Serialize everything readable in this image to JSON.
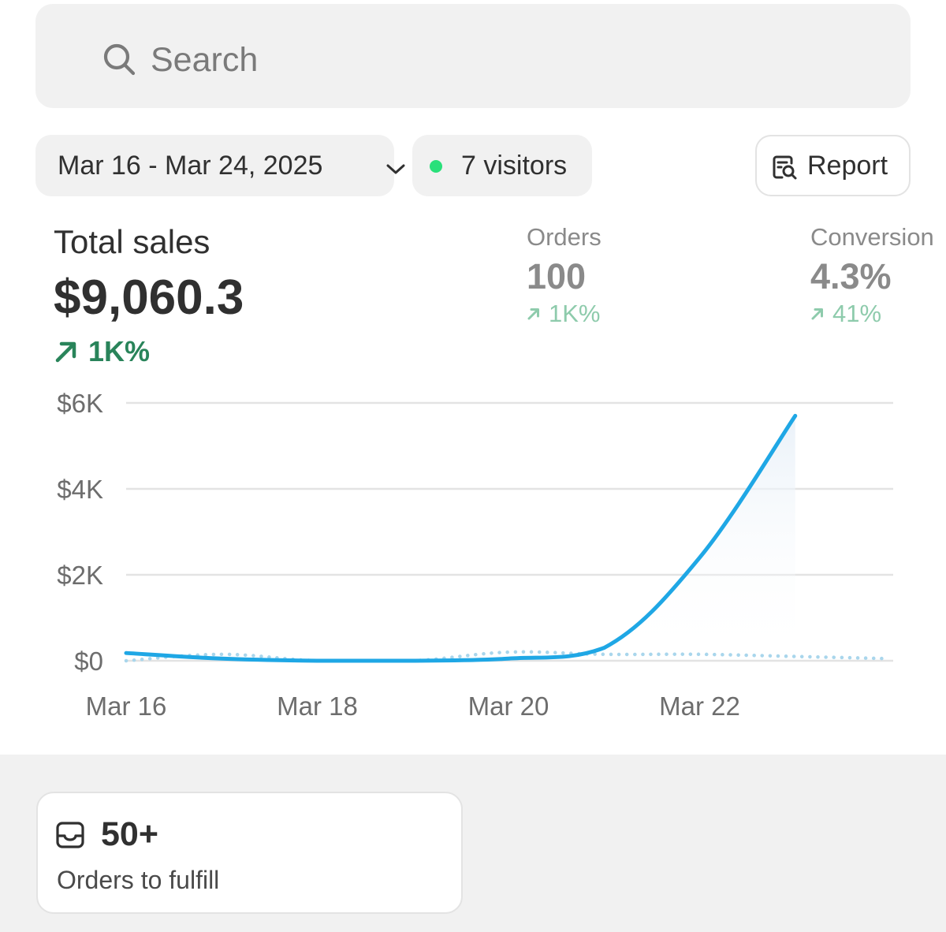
{
  "search": {
    "placeholder": "Search",
    "icon": "search-icon"
  },
  "filters": {
    "date_range": "Mar 16 - Mar 24, 2025",
    "visitors": "7 visitors",
    "visitors_dot_color": "#29e07a",
    "report_label": "Report"
  },
  "metrics": {
    "total_sales": {
      "title": "Total sales",
      "value": "$9,060.3",
      "change": "1K%"
    },
    "orders": {
      "title": "Orders",
      "value": "100",
      "change": "1K%"
    },
    "conversion": {
      "title": "Conversion",
      "value": "4.3%",
      "change": "41%"
    }
  },
  "colors": {
    "accent_line": "#1fa7e5",
    "positive": "#29845a",
    "positive_muted": "#8ecbac",
    "muted_text": "#8a8a8a"
  },
  "chart_data": {
    "type": "line",
    "x": [
      "Mar 16",
      "Mar 17",
      "Mar 18",
      "Mar 19",
      "Mar 20",
      "Mar 21",
      "Mar 22",
      "Mar 23",
      "Mar 24"
    ],
    "x_tick_labels": [
      "Mar 16",
      "Mar 18",
      "Mar 20",
      "Mar 22"
    ],
    "y_tick_labels": [
      "$6K",
      "$4K",
      "$2K",
      "$0"
    ],
    "ylim": [
      0,
      6000
    ],
    "series": [
      {
        "values": [
          180,
          50,
          0,
          0,
          50,
          300,
          2400,
          5700,
          null
        ],
        "style": "solid"
      },
      {
        "values": [
          0,
          150,
          0,
          0,
          200,
          150,
          150,
          100,
          50
        ],
        "style": "dotted"
      }
    ],
    "grid": true
  },
  "fulfill": {
    "count": "50+",
    "label": "Orders to fulfill"
  }
}
